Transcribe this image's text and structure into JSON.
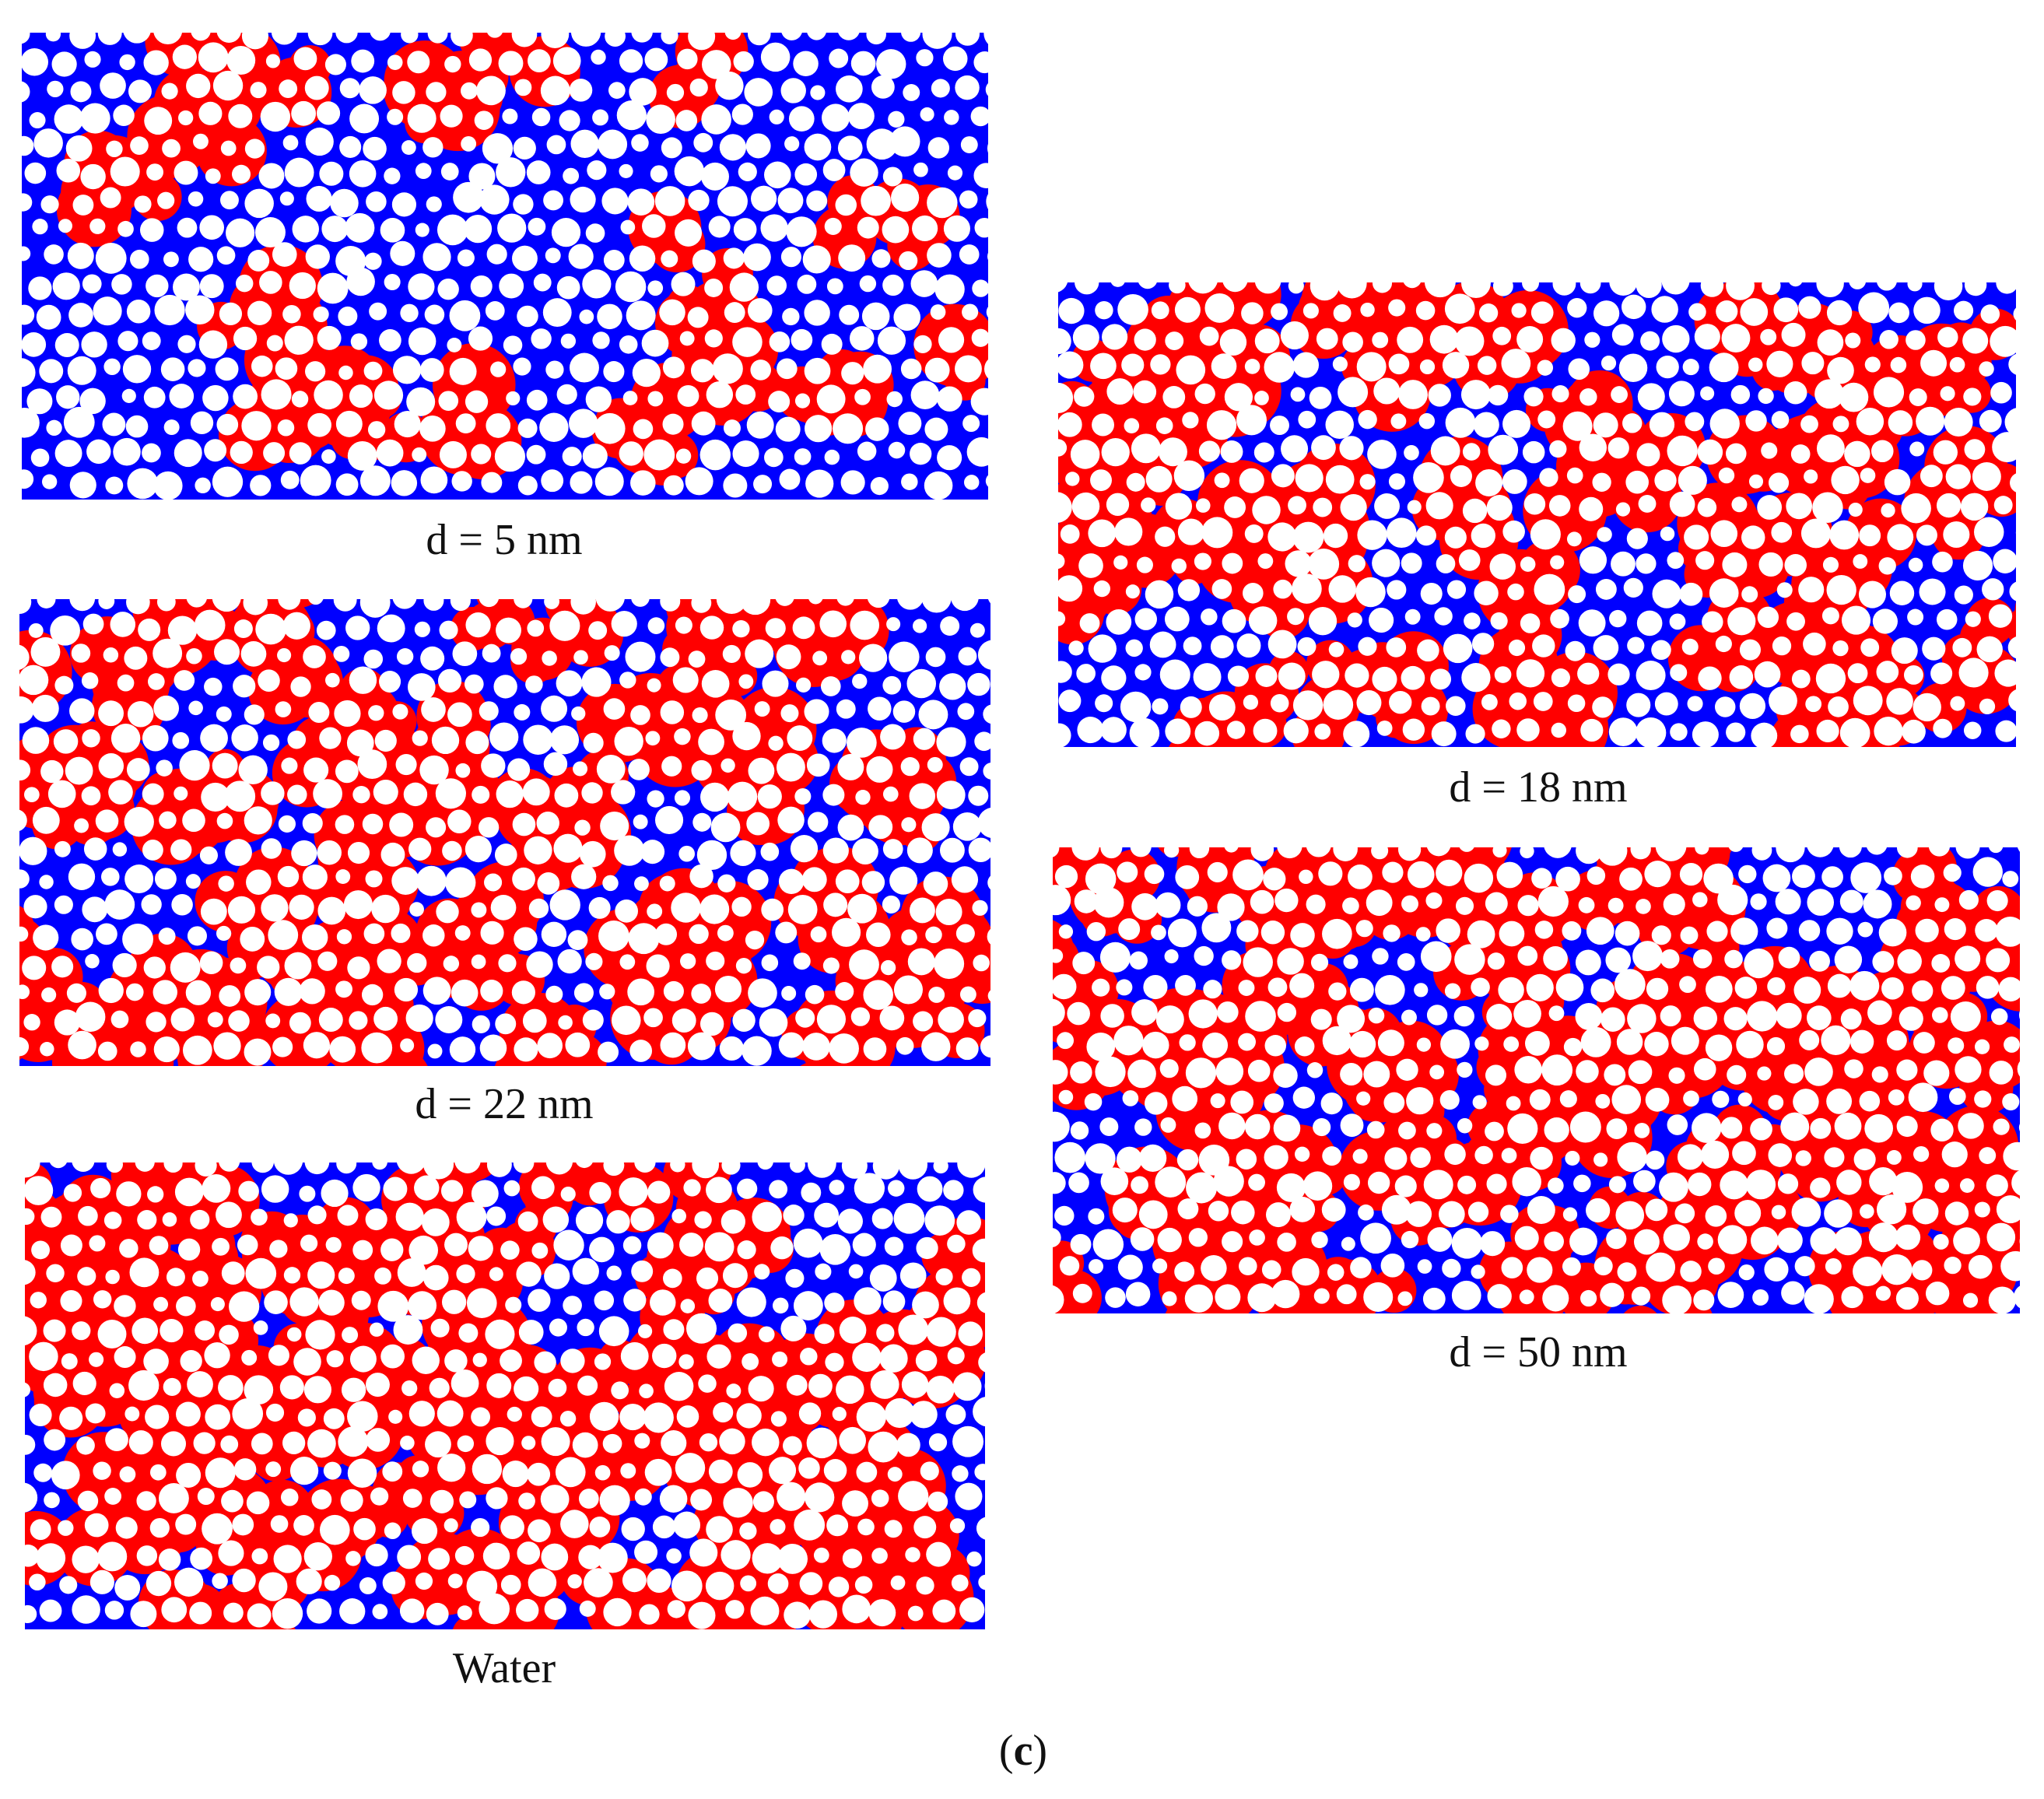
{
  "panels": [
    {
      "label": "d = 5 nm"
    },
    {
      "label": "d = 22 nm"
    },
    {
      "label": "Water"
    },
    {
      "label": "d = 18 nm"
    },
    {
      "label": "d = 50 nm"
    }
  ],
  "figure_label": {
    "open": "(",
    "letter": "c",
    "close": ")"
  }
}
